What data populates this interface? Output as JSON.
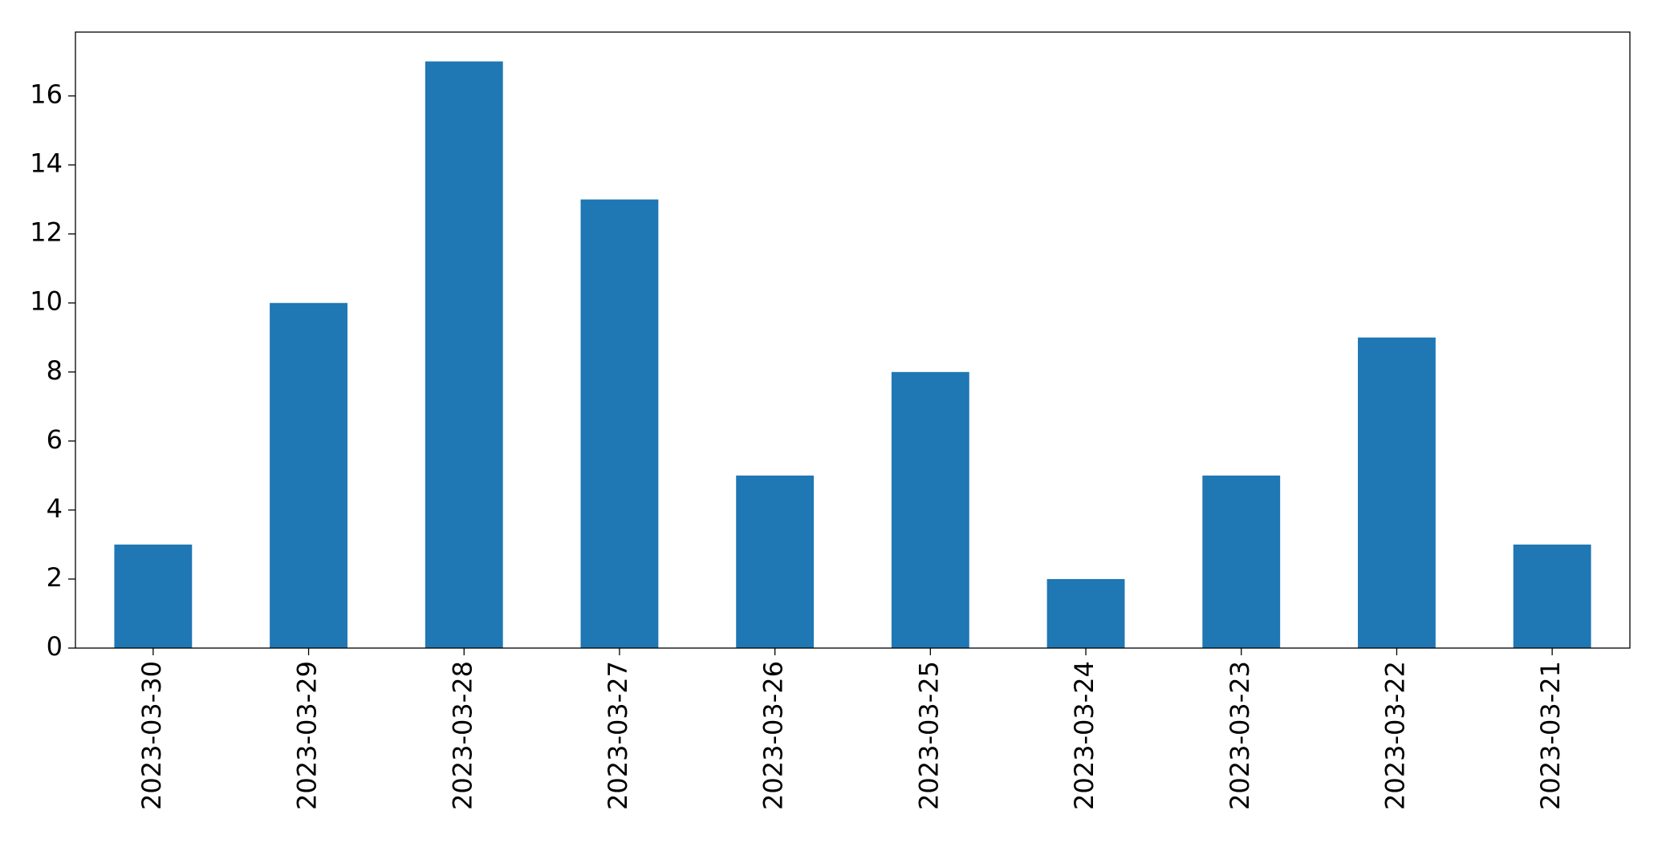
{
  "chart_data": {
    "type": "bar",
    "categories": [
      "2023-03-30",
      "2023-03-29",
      "2023-03-28",
      "2023-03-27",
      "2023-03-26",
      "2023-03-25",
      "2023-03-24",
      "2023-03-23",
      "2023-03-22",
      "2023-03-21"
    ],
    "values": [
      3,
      10,
      17,
      13,
      5,
      8,
      2,
      5,
      9,
      3
    ],
    "color": "#1f77b4",
    "ylim": [
      0,
      17.85
    ],
    "yticks": [
      0,
      2,
      4,
      6,
      8,
      10,
      12,
      14,
      16
    ],
    "grid": false
  }
}
